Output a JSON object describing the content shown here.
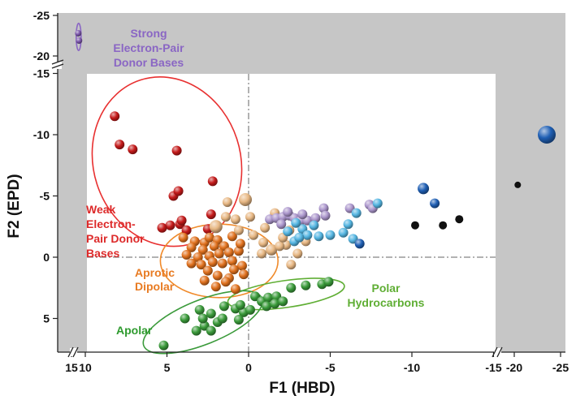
{
  "chart_data": {
    "type": "scatter",
    "xlabel": "F1 (HBD)",
    "ylabel": "F2 (EPD)",
    "x_reversed": true,
    "y_reversed": true,
    "x_axis_break": "between 10 and 15, and between -15 and -20",
    "y_axis_break": "between -15 and -20",
    "xlim": [
      15,
      -25
    ],
    "ylim": [
      8,
      -25
    ],
    "x_tick_labels": [
      "15",
      "10",
      "5",
      "0",
      "-5",
      "-10",
      "-15",
      "-20",
      "-25"
    ],
    "y_tick_labels": [
      "-25",
      "-20",
      "-15",
      "-10",
      "-5",
      "0",
      "5"
    ],
    "grid": false,
    "zero_lines": "dash-dot at x=0 and y=0",
    "colors": {
      "background": "#c6c6c6",
      "plot_area": "#ffffff",
      "strong_donor": "#7a55aa",
      "weak_donor": "#c41a1a",
      "aprotic_dipolar": "#e0711e",
      "tan": "#e7b783",
      "lavender": "#ab96cc",
      "light_blue": "#55b6e2",
      "dark_blue": "#1f5fb4",
      "black": "#111111",
      "green": "#3a9a3a"
    },
    "annotations": [
      {
        "id": "strong",
        "lines": [
          "Strong",
          "Electron-Pair",
          "Donor Bases"
        ],
        "color": "#8a66c4"
      },
      {
        "id": "weak",
        "lines": [
          "Weak",
          "Electron-",
          "Pair Donor",
          "Bases"
        ],
        "color": "#dd2a2a"
      },
      {
        "id": "aprotic",
        "lines": [
          "Aprotic",
          "Dipolar"
        ],
        "color": "#e87b22"
      },
      {
        "id": "polar",
        "lines": [
          "Polar",
          "Hydrocarbons"
        ],
        "color": "#5fae34"
      },
      {
        "id": "apolar",
        "lines": [
          "Apolar"
        ],
        "color": "#2e9a2e"
      }
    ],
    "series": [
      {
        "name": "Strong Electron-Pair Donor Bases",
        "color": "#7a55aa",
        "points": [
          [
            14.5,
            -22.5
          ],
          [
            14.1,
            -21.7
          ]
        ]
      },
      {
        "name": "Weak Electron-Pair Donor Bases",
        "color": "#c41a1a",
        "points": [
          [
            8.2,
            -11.5
          ],
          [
            7.9,
            -9.2
          ],
          [
            7.1,
            -8.8
          ],
          [
            4.4,
            -8.7
          ],
          [
            2.2,
            -6.2
          ],
          [
            4.6,
            -5.0
          ],
          [
            4.3,
            -5.4
          ],
          [
            2.3,
            -3.5
          ],
          [
            4.8,
            -2.6
          ],
          [
            5.3,
            -2.4
          ],
          [
            4.2,
            -2.7
          ],
          [
            4.1,
            -3.0
          ],
          [
            2.5,
            -2.3
          ],
          [
            3.8,
            -2.2
          ]
        ]
      },
      {
        "name": "Aprotic Dipolar",
        "color": "#e0711e",
        "points": [
          [
            4.0,
            -1.6
          ],
          [
            3.3,
            -1.3
          ],
          [
            2.7,
            -1.2
          ],
          [
            2.4,
            -1.6
          ],
          [
            1.9,
            -1.4
          ],
          [
            3.5,
            -0.8
          ],
          [
            2.8,
            -0.6
          ],
          [
            2.1,
            -0.9
          ],
          [
            1.5,
            -0.9
          ],
          [
            3.8,
            -0.2
          ],
          [
            3.1,
            0.0
          ],
          [
            2.4,
            -0.1
          ],
          [
            1.8,
            -0.3
          ],
          [
            1.2,
            -0.4
          ],
          [
            0.6,
            -0.5
          ],
          [
            3.5,
            0.5
          ],
          [
            2.9,
            0.6
          ],
          [
            2.2,
            0.4
          ],
          [
            1.6,
            0.5
          ],
          [
            1.0,
            0.3
          ],
          [
            0.4,
            0.7
          ],
          [
            0.9,
            1.0
          ],
          [
            0.3,
            1.4
          ],
          [
            2.5,
            1.1
          ],
          [
            1.9,
            1.5
          ],
          [
            1.2,
            1.7
          ],
          [
            2.7,
            1.9
          ],
          [
            2.0,
            2.4
          ],
          [
            1.4,
            2.0
          ],
          [
            0.8,
            2.6
          ],
          [
            0.5,
            -1.1
          ],
          [
            1.0,
            -1.7
          ]
        ]
      },
      {
        "name": "Tan",
        "color": "#e7b783",
        "points": [
          [
            0.2,
            -4.7
          ],
          [
            1.3,
            -4.5
          ],
          [
            1.4,
            -3.3
          ],
          [
            0.8,
            -3.1
          ],
          [
            -0.1,
            -3.3
          ],
          [
            2.0,
            -2.5
          ],
          [
            0.6,
            -2.2
          ],
          [
            -0.3,
            -1.8
          ],
          [
            -1.0,
            -2.4
          ],
          [
            -1.6,
            -3.6
          ],
          [
            -2.5,
            -2.2
          ],
          [
            -2.3,
            -1.0
          ],
          [
            -1.4,
            -0.6
          ],
          [
            -0.8,
            -0.3
          ],
          [
            -1.9,
            -0.9
          ],
          [
            -3.0,
            -0.3
          ],
          [
            -3.5,
            -1.3
          ],
          [
            -2.6,
            0.6
          ],
          [
            -0.9,
            -1.2
          ],
          [
            -2.1,
            -1.6
          ]
        ]
      },
      {
        "name": "Lavender",
        "color": "#ab96cc",
        "points": [
          [
            -1.3,
            -3.1
          ],
          [
            -1.7,
            -3.2
          ],
          [
            -2.1,
            -3.3
          ],
          [
            -2.5,
            -3.4
          ],
          [
            -2.8,
            -3.2
          ],
          [
            -3.2,
            -3.0
          ],
          [
            -3.6,
            -3.0
          ],
          [
            -4.1,
            -3.2
          ],
          [
            -2.4,
            -3.7
          ],
          [
            -3.3,
            -3.5
          ],
          [
            -4.6,
            -4.0
          ],
          [
            -6.2,
            -4.0
          ],
          [
            -7.4,
            -4.3
          ],
          [
            -7.6,
            -4.0
          ],
          [
            -4.7,
            -3.4
          ],
          [
            -2.0,
            -2.7
          ]
        ]
      },
      {
        "name": "Light blue",
        "color": "#55b6e2",
        "points": [
          [
            -2.4,
            -2.1
          ],
          [
            -2.8,
            -1.3
          ],
          [
            -3.3,
            -2.3
          ],
          [
            -3.6,
            -1.8
          ],
          [
            -4.0,
            -2.6
          ],
          [
            -4.3,
            -1.7
          ],
          [
            -5.0,
            -1.8
          ],
          [
            -5.8,
            -2.0
          ],
          [
            -6.1,
            -2.7
          ],
          [
            -6.4,
            -1.5
          ],
          [
            -6.6,
            -3.6
          ],
          [
            -2.9,
            -2.8
          ],
          [
            -3.1,
            -1.6
          ],
          [
            -7.9,
            -4.4
          ]
        ]
      },
      {
        "name": "Dark blue",
        "color": "#1f5fb4",
        "points": [
          [
            -10.7,
            -5.6
          ],
          [
            -11.4,
            -4.4
          ],
          [
            -6.8,
            -1.1
          ],
          [
            -23.7,
            -10.0
          ]
        ]
      },
      {
        "name": "Black",
        "color": "#111111",
        "points": [
          [
            -10.2,
            -2.6
          ],
          [
            -11.9,
            -2.6
          ],
          [
            -12.9,
            -3.1
          ],
          [
            -20.4,
            -5.9
          ]
        ]
      },
      {
        "name": "Polar Hydrocarbons",
        "color": "#3a9a3a",
        "points": [
          [
            -0.4,
            3.2
          ],
          [
            -0.8,
            3.6
          ],
          [
            -1.2,
            3.3
          ],
          [
            -1.7,
            3.2
          ],
          [
            -2.6,
            2.5
          ],
          [
            -3.5,
            2.3
          ],
          [
            -4.5,
            2.2
          ],
          [
            -4.9,
            2.0
          ],
          [
            -1.1,
            4.0
          ],
          [
            -1.6,
            3.8
          ],
          [
            -2.1,
            3.6
          ]
        ]
      },
      {
        "name": "Apolar",
        "color": "#3a9a3a",
        "points": [
          [
            5.2,
            7.2
          ],
          [
            3.9,
            5.0
          ],
          [
            3.0,
            4.3
          ],
          [
            2.3,
            4.6
          ],
          [
            1.5,
            4.0
          ],
          [
            0.8,
            4.2
          ],
          [
            0.3,
            4.5
          ],
          [
            -0.1,
            4.3
          ],
          [
            0.5,
            3.9
          ],
          [
            1.9,
            5.3
          ],
          [
            2.7,
            5.6
          ],
          [
            3.2,
            6.0
          ],
          [
            2.3,
            6.0
          ],
          [
            1.6,
            5.0
          ],
          [
            0.6,
            5.1
          ],
          [
            2.8,
            5.0
          ]
        ]
      }
    ],
    "ellipses": [
      {
        "name": "Strong Electron-Pair Donor Bases",
        "color": "#8a66c4",
        "cx": 14.3,
        "cy": -22.1,
        "rx": 1.2,
        "ry": 1.5,
        "angle": 0
      },
      {
        "name": "Weak Electron-Pair Donor Bases",
        "color": "#e83030",
        "cx": 5.0,
        "cy": -7.8,
        "rx": 4.5,
        "ry": 7.0,
        "angle": -18
      },
      {
        "name": "Aprotic Dipolar",
        "color": "#f08a2a",
        "cx": 1.8,
        "cy": 0.3,
        "rx": 3.6,
        "ry": 3.0,
        "angle": 0
      },
      {
        "name": "Polar Hydrocarbons",
        "color": "#5fae34",
        "cx": -2.3,
        "cy": 3.0,
        "rx": 3.6,
        "ry": 1.1,
        "angle": -8
      },
      {
        "name": "Apolar",
        "color": "#3a9a3a",
        "cx": 2.8,
        "cy": 5.3,
        "rx": 3.9,
        "ry": 1.8,
        "angle": -22
      }
    ]
  }
}
